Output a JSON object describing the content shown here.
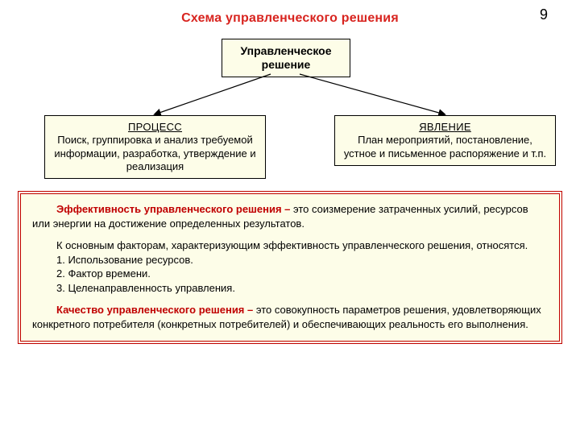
{
  "page": {
    "number": "9"
  },
  "diagram": {
    "type": "tree",
    "title": "Схема управленческого решения",
    "title_color": "#d8241f",
    "root": {
      "label": "Управленческое\nрешение"
    },
    "children": [
      {
        "header": "ПРОЦЕСС",
        "body": "Поиск, группировка и анализ требуемой информации, разработка, утверждение и реализация"
      },
      {
        "header": "ЯВЛЕНИЕ",
        "body": "План мероприятий, постановление, устное и письменное распоряжение и т.п."
      }
    ],
    "box_bg": "#fdfde8",
    "box_border": "#000000",
    "edge_color": "#000000"
  },
  "info": {
    "border_color": "#c00000",
    "bg_color": "#fdfde8",
    "sections": {
      "eff_lead": "Эффективность управленческого решения –",
      "eff_rest": " это соизмерение затраченных усилий, ресурсов или энергии на достижение определенных результатов.",
      "factors_intro": "К основным факторам, характеризующим эффективность управленческого решения, относятся.",
      "factor1": "1. Использование ресурсов.",
      "factor2": "2. Фактор времени.",
      "factor3": "3. Целенаправленность управления.",
      "qual_lead": "Качество управленческого решения –",
      "qual_rest": " это совокупность параметров решения, удовлетворяющих конкретного потребителя (конкретных потребителей) и обеспечивающих реальность его выполнения."
    }
  }
}
